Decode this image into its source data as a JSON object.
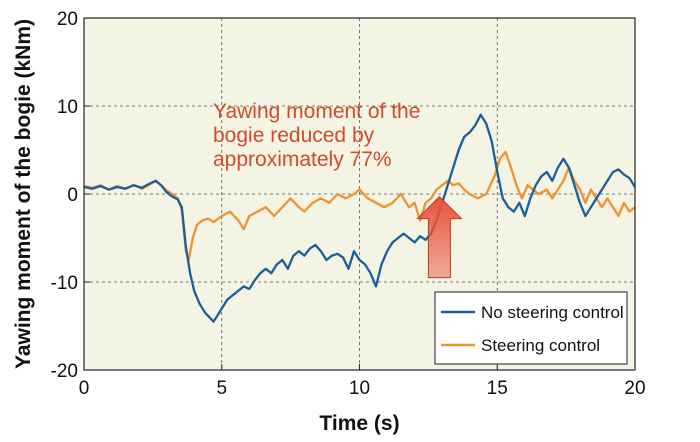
{
  "chart_data": {
    "type": "line",
    "xlabel": "Time (s)",
    "ylabel": "Yawing moment of the bogie (kNm)",
    "xlim": [
      0,
      20
    ],
    "ylim": [
      -20,
      20
    ],
    "x_ticks": [
      "0",
      "5",
      "10",
      "15",
      "20"
    ],
    "y_ticks": [
      "20",
      "10",
      "0",
      "-10",
      "-20"
    ],
    "grid": true,
    "legend_position": "bottom-right",
    "background_color": "#f4f4e4",
    "annotation": {
      "lines": [
        "Yawing moment of the",
        "bogie reduced by",
        "approximately 77%"
      ],
      "color": "#d24a2e"
    },
    "arrow": {
      "x": 12.9,
      "y_base": -9.5,
      "y_tip": -0.3,
      "direction": "up",
      "color": "#e8533a"
    },
    "series": [
      {
        "name": "No steering control",
        "color": "#1a5e9a",
        "points": [
          [
            0,
            0.8
          ],
          [
            0.3,
            0.6
          ],
          [
            0.6,
            0.9
          ],
          [
            0.9,
            0.5
          ],
          [
            1.2,
            0.8
          ],
          [
            1.5,
            0.6
          ],
          [
            1.8,
            1.0
          ],
          [
            2.1,
            0.7
          ],
          [
            2.4,
            1.2
          ],
          [
            2.6,
            1.5
          ],
          [
            2.8,
            1.0
          ],
          [
            3.0,
            0.2
          ],
          [
            3.2,
            -0.3
          ],
          [
            3.4,
            -0.6
          ],
          [
            3.55,
            -1.5
          ],
          [
            3.7,
            -6.0
          ],
          [
            3.85,
            -9.0
          ],
          [
            4.0,
            -11.0
          ],
          [
            4.2,
            -12.5
          ],
          [
            4.4,
            -13.5
          ],
          [
            4.55,
            -14.0
          ],
          [
            4.7,
            -14.5
          ],
          [
            4.85,
            -13.8
          ],
          [
            5.0,
            -13.0
          ],
          [
            5.2,
            -12.0
          ],
          [
            5.4,
            -11.5
          ],
          [
            5.6,
            -11.0
          ],
          [
            5.8,
            -10.5
          ],
          [
            6.0,
            -10.8
          ],
          [
            6.2,
            -9.8
          ],
          [
            6.4,
            -9.0
          ],
          [
            6.6,
            -8.5
          ],
          [
            6.8,
            -9.0
          ],
          [
            7.0,
            -8.0
          ],
          [
            7.2,
            -7.5
          ],
          [
            7.4,
            -8.5
          ],
          [
            7.6,
            -7.0
          ],
          [
            7.8,
            -6.5
          ],
          [
            8.0,
            -7.0
          ],
          [
            8.2,
            -6.2
          ],
          [
            8.4,
            -5.8
          ],
          [
            8.6,
            -6.5
          ],
          [
            8.8,
            -7.5
          ],
          [
            9.0,
            -7.0
          ],
          [
            9.2,
            -6.8
          ],
          [
            9.4,
            -7.2
          ],
          [
            9.6,
            -8.5
          ],
          [
            9.8,
            -6.5
          ],
          [
            10.0,
            -7.5
          ],
          [
            10.2,
            -8.0
          ],
          [
            10.4,
            -9.0
          ],
          [
            10.6,
            -10.5
          ],
          [
            10.8,
            -8.0
          ],
          [
            11.0,
            -6.5
          ],
          [
            11.2,
            -5.5
          ],
          [
            11.4,
            -5.0
          ],
          [
            11.6,
            -4.5
          ],
          [
            11.8,
            -5.0
          ],
          [
            12.0,
            -5.5
          ],
          [
            12.2,
            -4.8
          ],
          [
            12.4,
            -5.2
          ],
          [
            12.6,
            -4.5
          ],
          [
            12.8,
            -3.0
          ],
          [
            13.0,
            -1.0
          ],
          [
            13.2,
            1.0
          ],
          [
            13.4,
            3.0
          ],
          [
            13.6,
            5.0
          ],
          [
            13.8,
            6.5
          ],
          [
            14.0,
            7.0
          ],
          [
            14.2,
            7.8
          ],
          [
            14.4,
            9.0
          ],
          [
            14.6,
            8.0
          ],
          [
            14.8,
            6.0
          ],
          [
            15.0,
            2.5
          ],
          [
            15.2,
            -0.5
          ],
          [
            15.4,
            -1.5
          ],
          [
            15.6,
            -2.0
          ],
          [
            15.8,
            -1.0
          ],
          [
            16.0,
            -2.5
          ],
          [
            16.2,
            -0.5
          ],
          [
            16.4,
            1.0
          ],
          [
            16.6,
            2.0
          ],
          [
            16.8,
            2.5
          ],
          [
            17.0,
            1.5
          ],
          [
            17.2,
            3.0
          ],
          [
            17.4,
            4.0
          ],
          [
            17.6,
            3.0
          ],
          [
            17.8,
            1.0
          ],
          [
            18.0,
            -1.0
          ],
          [
            18.2,
            -2.5
          ],
          [
            18.4,
            -1.5
          ],
          [
            18.6,
            -0.5
          ],
          [
            18.8,
            0.5
          ],
          [
            19.0,
            1.5
          ],
          [
            19.2,
            2.5
          ],
          [
            19.4,
            2.8
          ],
          [
            19.6,
            2.2
          ],
          [
            19.8,
            1.8
          ],
          [
            20.0,
            0.8
          ]
        ]
      },
      {
        "name": "Steering control",
        "color": "#ef922f",
        "points": [
          [
            0,
            0.9
          ],
          [
            0.3,
            0.7
          ],
          [
            0.6,
            1.0
          ],
          [
            0.9,
            0.5
          ],
          [
            1.2,
            0.9
          ],
          [
            1.5,
            0.6
          ],
          [
            1.8,
            1.0
          ],
          [
            2.1,
            0.6
          ],
          [
            2.4,
            1.1
          ],
          [
            2.6,
            1.5
          ],
          [
            2.8,
            1.0
          ],
          [
            3.0,
            0.4
          ],
          [
            3.2,
            0.0
          ],
          [
            3.4,
            -0.5
          ],
          [
            3.55,
            -1.8
          ],
          [
            3.7,
            -6.5
          ],
          [
            3.8,
            -7.5
          ],
          [
            3.95,
            -5.0
          ],
          [
            4.1,
            -3.5
          ],
          [
            4.3,
            -3.0
          ],
          [
            4.5,
            -2.8
          ],
          [
            4.7,
            -3.2
          ],
          [
            5.0,
            -2.5
          ],
          [
            5.3,
            -2.0
          ],
          [
            5.6,
            -3.0
          ],
          [
            5.8,
            -4.0
          ],
          [
            6.0,
            -2.5
          ],
          [
            6.3,
            -2.0
          ],
          [
            6.6,
            -1.5
          ],
          [
            6.9,
            -2.5
          ],
          [
            7.2,
            -1.5
          ],
          [
            7.5,
            -0.5
          ],
          [
            7.8,
            -1.5
          ],
          [
            8.0,
            -2.0
          ],
          [
            8.3,
            -1.0
          ],
          [
            8.6,
            -0.5
          ],
          [
            8.9,
            -1.0
          ],
          [
            9.2,
            0.0
          ],
          [
            9.5,
            -0.5
          ],
          [
            9.8,
            0.0
          ],
          [
            10.0,
            0.5
          ],
          [
            10.3,
            -0.5
          ],
          [
            10.6,
            -1.0
          ],
          [
            10.9,
            -1.5
          ],
          [
            11.2,
            -1.0
          ],
          [
            11.5,
            0.0
          ],
          [
            11.8,
            -1.5
          ],
          [
            12.0,
            -1.0
          ],
          [
            12.2,
            -3.0
          ],
          [
            12.4,
            -1.0
          ],
          [
            12.6,
            -0.5
          ],
          [
            12.8,
            0.5
          ],
          [
            13.0,
            1.0
          ],
          [
            13.2,
            1.5
          ],
          [
            13.4,
            1.0
          ],
          [
            13.6,
            1.2
          ],
          [
            13.8,
            0.5
          ],
          [
            14.0,
            0.0
          ],
          [
            14.3,
            -0.5
          ],
          [
            14.6,
            0.0
          ],
          [
            14.9,
            2.0
          ],
          [
            15.1,
            4.0
          ],
          [
            15.3,
            4.8
          ],
          [
            15.5,
            3.0
          ],
          [
            15.7,
            1.0
          ],
          [
            15.9,
            -0.5
          ],
          [
            16.1,
            1.0
          ],
          [
            16.3,
            0.5
          ],
          [
            16.5,
            0.0
          ],
          [
            16.8,
            0.5
          ],
          [
            17.0,
            -0.5
          ],
          [
            17.2,
            0.5
          ],
          [
            17.4,
            1.5
          ],
          [
            17.6,
            3.0
          ],
          [
            17.8,
            1.5
          ],
          [
            18.0,
            0.5
          ],
          [
            18.2,
            -1.0
          ],
          [
            18.4,
            0.5
          ],
          [
            18.6,
            -0.5
          ],
          [
            18.8,
            -1.5
          ],
          [
            19.0,
            -0.5
          ],
          [
            19.2,
            -1.5
          ],
          [
            19.4,
            -2.5
          ],
          [
            19.6,
            -1.0
          ],
          [
            19.8,
            -2.0
          ],
          [
            20.0,
            -1.5
          ]
        ]
      }
    ]
  }
}
